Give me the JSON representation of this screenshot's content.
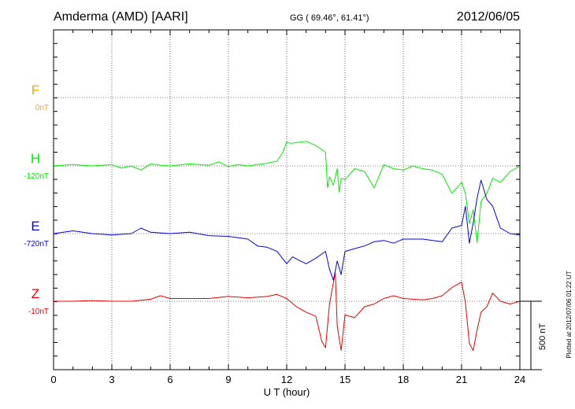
{
  "header": {
    "station": "Amderma (AMD)  [AARI]",
    "coords": "GG ( 69.46°,  61.41°)",
    "date": "2012/06/05"
  },
  "side_note": "Plotted at 2012/07/06 01:22 UT",
  "scale_label": "500 nT",
  "colors": {
    "F": "#ffa500",
    "H": "#00ee00",
    "E": "#0000ee",
    "Z": "#ee0000"
  },
  "chart_data": {
    "type": "line",
    "title": "Amderma (AMD)  [AARI]",
    "xlabel": "U T (hour)",
    "xlim": [
      0,
      24
    ],
    "x_ticks": [
      "0",
      "3",
      "6",
      "9",
      "12",
      "15",
      "18",
      "21",
      "24"
    ],
    "grid": true,
    "scale_bar_nT": 500,
    "series": [
      {
        "name": "F",
        "baseline_label": "0nT",
        "baseline_nT": 0,
        "x": [],
        "values": []
      },
      {
        "name": "H",
        "baseline_label": "-120nT",
        "baseline_nT": -120,
        "x": [
          0,
          1,
          2,
          3,
          3.5,
          4,
          4.5,
          5,
          5.5,
          6,
          7,
          8,
          8.5,
          9,
          9.5,
          10,
          11,
          11.5,
          11.8,
          12,
          12.2,
          12.5,
          13,
          13.5,
          14,
          14.1,
          14.2,
          14.4,
          14.6,
          14.7,
          14.8,
          15,
          15.5,
          16,
          16.5,
          17,
          17.5,
          18,
          18.5,
          19,
          19.5,
          20,
          20.5,
          21,
          21.2,
          21.4,
          21.6,
          21.8,
          22,
          22.3,
          22.6,
          23,
          23.5,
          24
        ],
        "values": [
          0,
          10,
          0,
          10,
          -15,
          0,
          -30,
          15,
          5,
          0,
          15,
          5,
          30,
          -5,
          10,
          0,
          20,
          35,
          100,
          175,
          165,
          170,
          180,
          150,
          100,
          -160,
          -80,
          -140,
          -20,
          -190,
          -90,
          -100,
          -20,
          -40,
          -160,
          10,
          -20,
          -30,
          0,
          -20,
          -30,
          -60,
          -200,
          -120,
          -200,
          -420,
          -320,
          -560,
          -260,
          -200,
          -90,
          -120,
          -40,
          0
        ]
      },
      {
        "name": "E",
        "baseline_label": "-720nT",
        "baseline_nT": -720,
        "x": [
          0,
          1,
          2,
          3,
          4,
          4.5,
          5,
          6,
          7,
          8,
          9,
          10,
          10.5,
          11,
          11.5,
          12,
          12.3,
          12.7,
          13,
          13.5,
          14,
          14.2,
          14.4,
          14.6,
          14.8,
          15,
          15.5,
          16,
          16.5,
          17,
          17.5,
          18,
          19,
          20,
          20.5,
          21,
          21.2,
          21.4,
          21.6,
          21.8,
          22,
          22.3,
          22.6,
          23,
          23.5,
          24
        ],
        "values": [
          0,
          20,
          0,
          -10,
          0,
          40,
          10,
          0,
          10,
          -15,
          -20,
          -40,
          -90,
          -100,
          -130,
          -220,
          -170,
          -200,
          -220,
          -180,
          -130,
          -260,
          -340,
          -200,
          -300,
          -130,
          -110,
          -90,
          -60,
          -50,
          -70,
          -40,
          -40,
          -60,
          40,
          60,
          200,
          -70,
          80,
          260,
          390,
          250,
          200,
          40,
          0,
          -10
        ]
      },
      {
        "name": "Z",
        "baseline_label": "-10nT",
        "baseline_nT": -10,
        "x": [
          0,
          1,
          2,
          3,
          4,
          5,
          5.5,
          6,
          7,
          8,
          9,
          10,
          11,
          11.5,
          12,
          12.5,
          13,
          13.5,
          13.8,
          14,
          14.2,
          14.5,
          14.6,
          14.8,
          15,
          15.5,
          16,
          16.5,
          17,
          17.5,
          18,
          19,
          19.5,
          20,
          20.5,
          21,
          21.2,
          21.4,
          21.6,
          21.8,
          22,
          22.3,
          22.6,
          23,
          23.5,
          24
        ],
        "values": [
          0,
          0,
          5,
          0,
          0,
          15,
          40,
          20,
          20,
          20,
          35,
          25,
          35,
          50,
          20,
          -40,
          -80,
          -110,
          -290,
          -340,
          -20,
          210,
          -180,
          -360,
          -100,
          -120,
          -40,
          -20,
          20,
          40,
          20,
          10,
          20,
          40,
          100,
          140,
          -10,
          -310,
          -360,
          -210,
          -80,
          -40,
          60,
          0,
          -20,
          0
        ]
      }
    ]
  }
}
